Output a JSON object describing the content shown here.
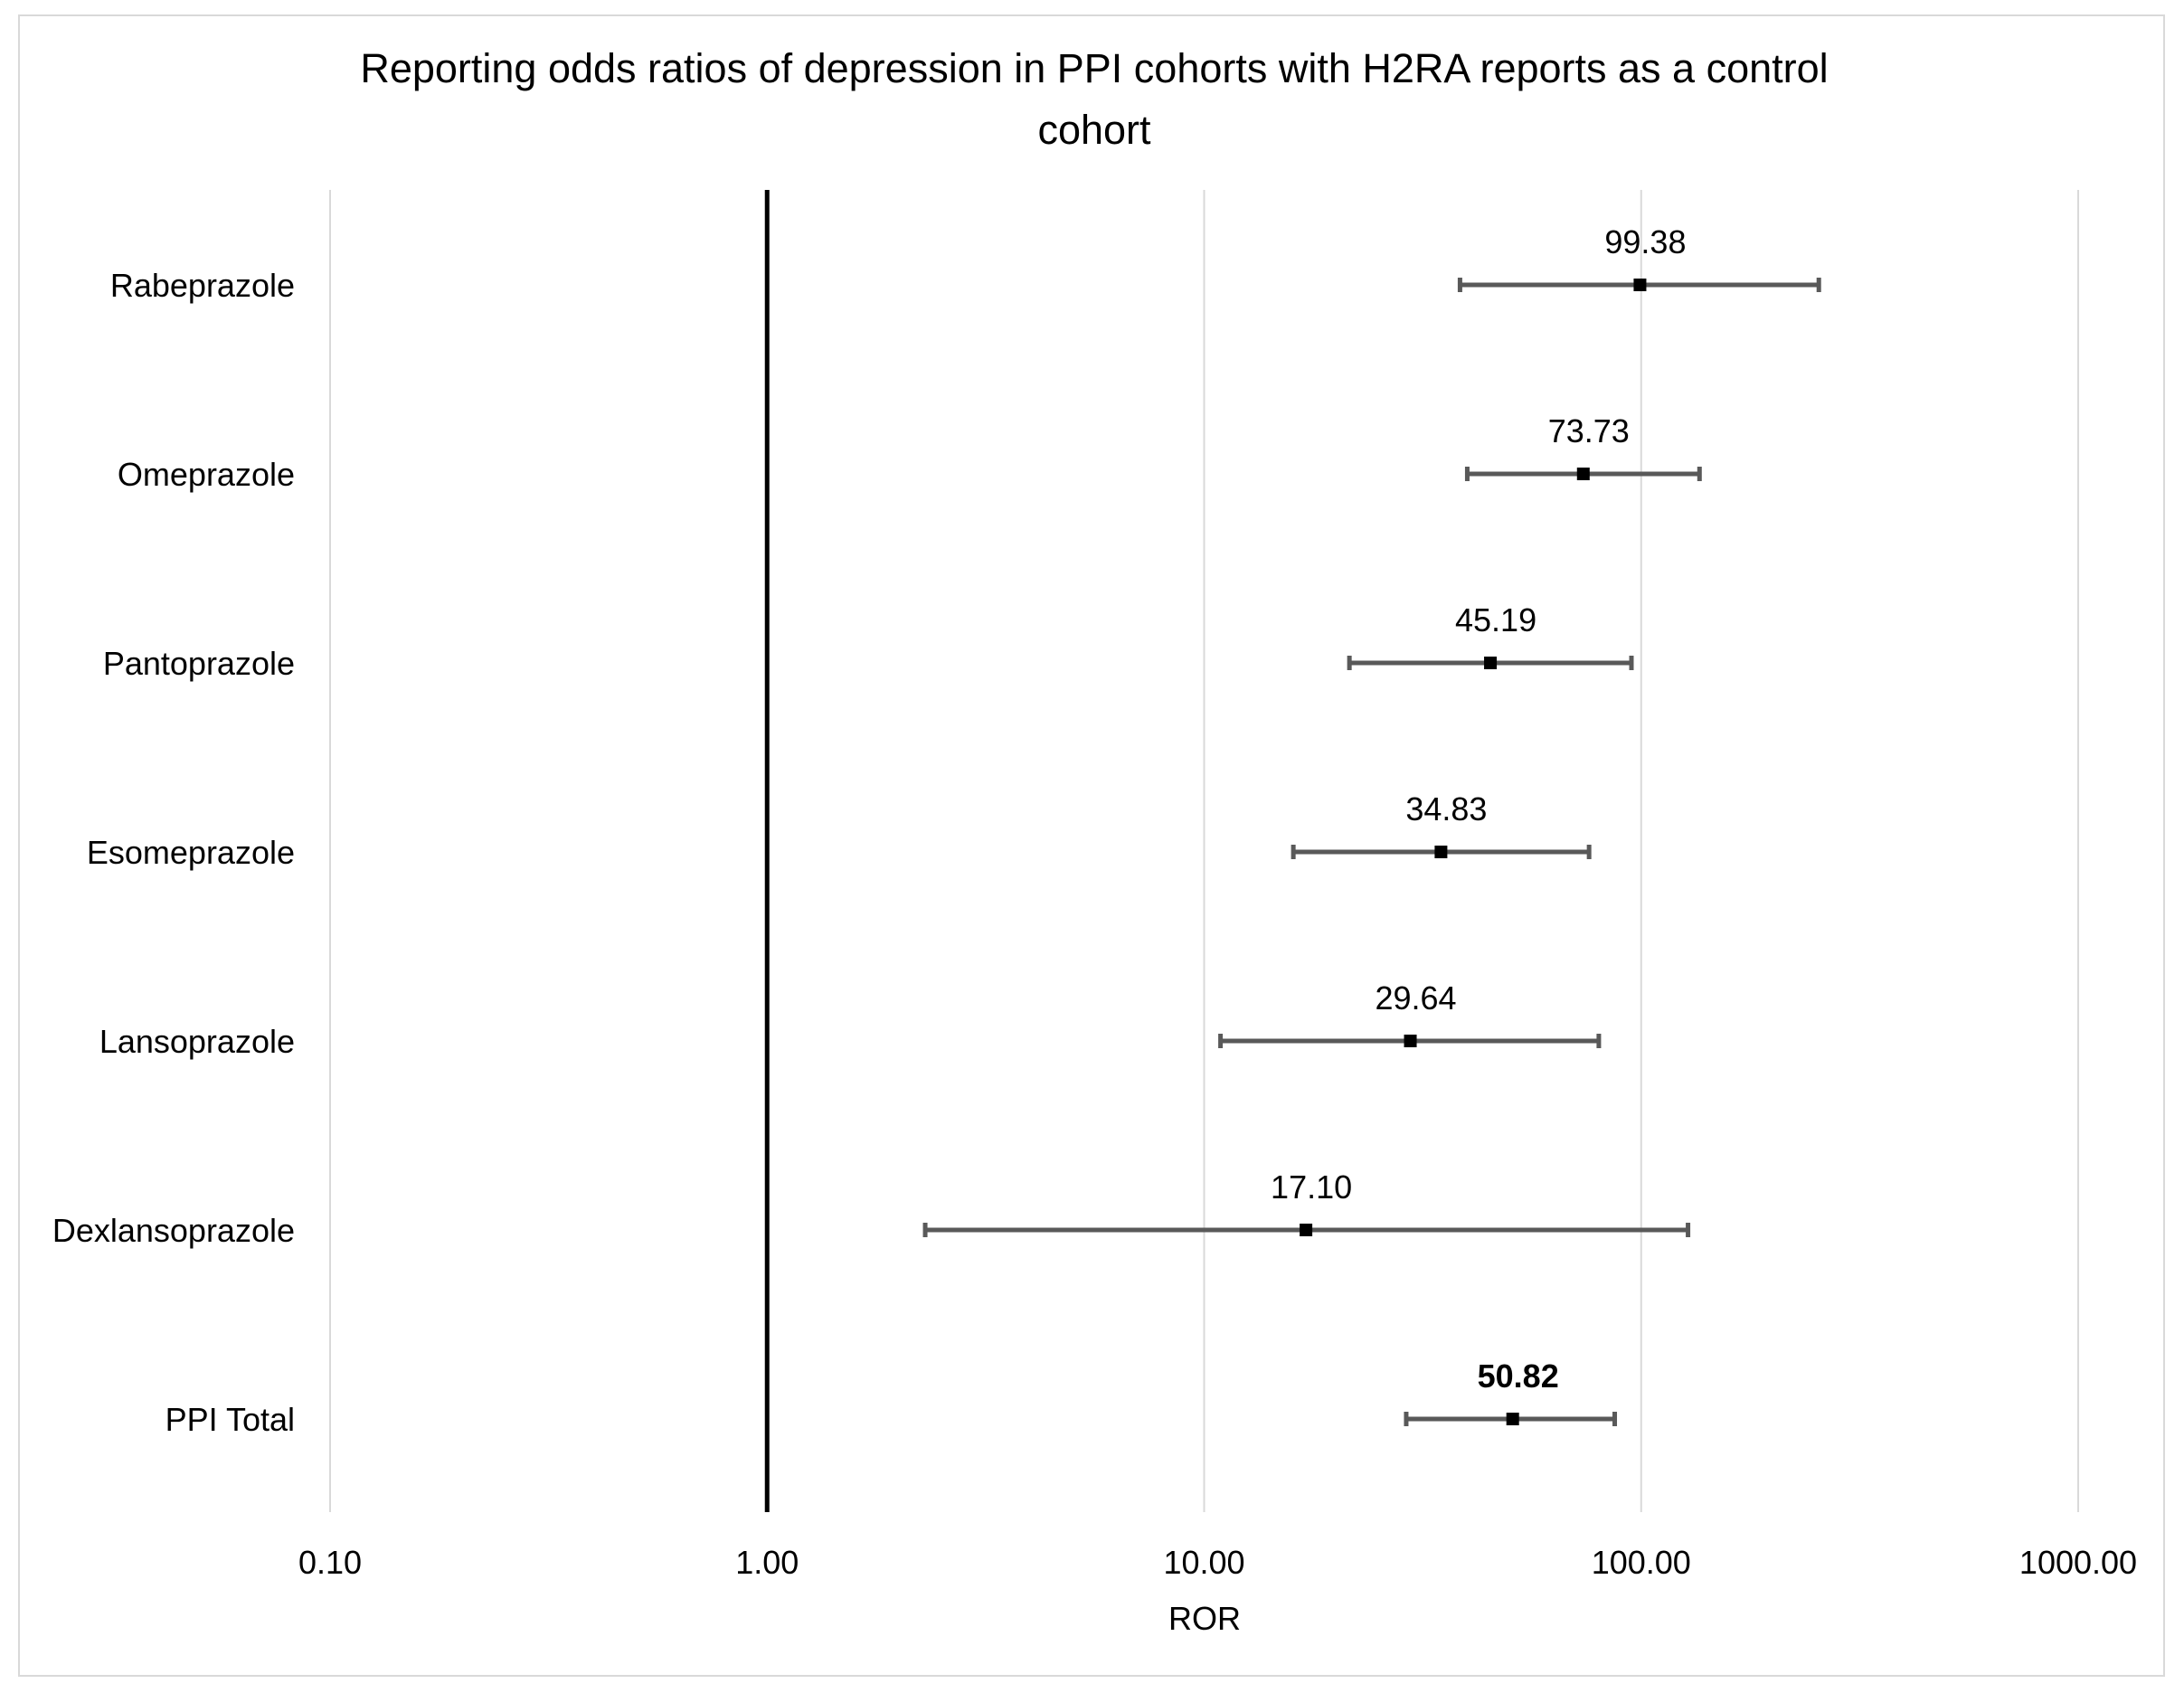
{
  "chart_data": {
    "type": "forest",
    "title": "Reporting odds ratios of depression in PPI cohorts with H2RA reports as a control cohort",
    "title_lines": [
      "Reporting odds ratios of depression in PPI cohorts with H2RA reports as a control",
      "cohort"
    ],
    "xlabel": "ROR",
    "ylabel": "",
    "x_scale": "log10",
    "xlim": [
      0.1,
      1000
    ],
    "reference_line": 1.0,
    "grid": true,
    "x_ticks": [
      0.1,
      1,
      10,
      100,
      1000
    ],
    "x_tick_labels": [
      "0.10",
      "1.00",
      "10.00",
      "100.00",
      "1000.00"
    ],
    "rows": [
      {
        "label": "Rabeprazole",
        "value": 99.38,
        "value_label": "99.38",
        "ci_low": 38.5,
        "ci_high": 255,
        "bold": false
      },
      {
        "label": "Omeprazole",
        "value": 73.73,
        "value_label": "73.73",
        "ci_low": 40.0,
        "ci_high": 136,
        "bold": false
      },
      {
        "label": "Pantoprazole",
        "value": 45.19,
        "value_label": "45.19",
        "ci_low": 21.5,
        "ci_high": 95,
        "bold": false
      },
      {
        "label": "Esomeprazole",
        "value": 34.83,
        "value_label": "34.83",
        "ci_low": 16.0,
        "ci_high": 76,
        "bold": false
      },
      {
        "label": "Lansoprazole",
        "value": 29.64,
        "value_label": "29.64",
        "ci_low": 10.9,
        "ci_high": 80,
        "bold": false
      },
      {
        "label": "Dexlansoprazole",
        "value": 17.1,
        "value_label": "17.10",
        "ci_low": 2.3,
        "ci_high": 128,
        "bold": false
      },
      {
        "label": "PPI Total",
        "value": 50.82,
        "value_label": "50.82",
        "ci_low": 29.0,
        "ci_high": 87,
        "bold": true
      }
    ]
  }
}
